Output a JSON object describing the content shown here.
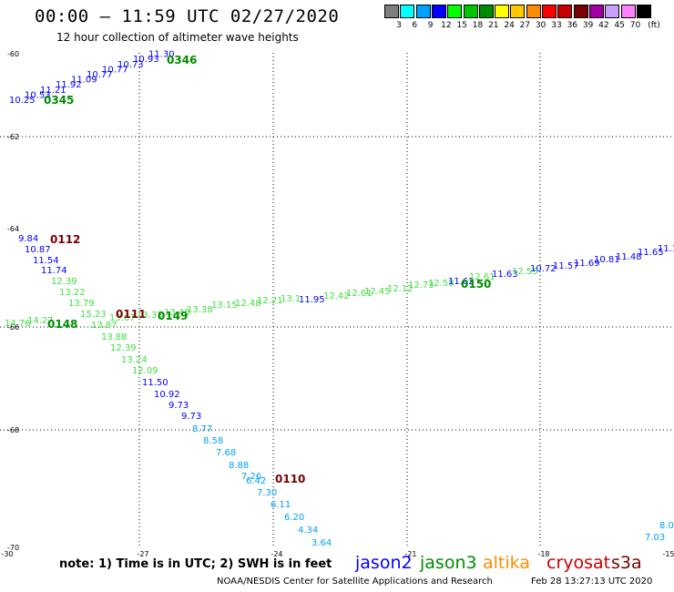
{
  "header": {
    "title": "00:00 – 11:59 UTC 02/27/2020",
    "subtitle": "12 hour collection of altimeter wave heights"
  },
  "legend": {
    "unit": "(ft)",
    "bins": [
      {
        "label": "3",
        "color": "#7f7f7f"
      },
      {
        "label": "6",
        "color": "#00ffff"
      },
      {
        "label": "9",
        "color": "#00a0ff"
      },
      {
        "label": "12",
        "color": "#0000ff"
      },
      {
        "label": "15",
        "color": "#00ff00"
      },
      {
        "label": "18",
        "color": "#00c800"
      },
      {
        "label": "21",
        "color": "#008c00"
      },
      {
        "label": "24",
        "color": "#ffff00"
      },
      {
        "label": "27",
        "color": "#ffc800"
      },
      {
        "label": "30",
        "color": "#ff8c00"
      },
      {
        "label": "33",
        "color": "#ff0000"
      },
      {
        "label": "36",
        "color": "#c80000"
      },
      {
        "label": "39",
        "color": "#780000"
      },
      {
        "label": "42",
        "color": "#a000a0"
      },
      {
        "label": "45",
        "color": "#c8a0ff"
      },
      {
        "label": "70",
        "color": "#ff80ff"
      },
      {
        "label": "",
        "color": "#000000"
      }
    ]
  },
  "axes": {
    "lat_labels": [
      "-60",
      "-62",
      "-64",
      "-66",
      "-68",
      "-70"
    ],
    "lon_labels": [
      "-30",
      "-27",
      "-24",
      "-21",
      "-18",
      "-15"
    ]
  },
  "tracks": [
    {
      "id": "track-0345",
      "time": "0345",
      "time_color": "#008c00",
      "values": [
        "10.25",
        "10.53",
        "11.21",
        "11.92",
        "11.09",
        "10.77",
        "10.77",
        "10.73",
        "10.93",
        "11.30"
      ],
      "colors": [
        "#0000ff",
        "#0000ff",
        "#0000ff",
        "#0000ff",
        "#0000ff",
        "#0000ff",
        "#0000ff",
        "#0000ff",
        "#0000ff",
        "#0000ff"
      ],
      "time2": "0346"
    },
    {
      "id": "track-0112",
      "time": "0112",
      "time_color": "#780000",
      "values": [
        "9.84",
        "10.87",
        "11.54",
        "11.74",
        "12.39",
        "13.22",
        "13.79",
        "15.23",
        "13.87",
        "13.88",
        "12.39",
        "13.24",
        "12.09",
        "11.50",
        "10.92",
        "9.73",
        "9.73",
        "8.77",
        "8.58",
        "7.68",
        "8.88",
        "7.26",
        "6.42",
        "7.30",
        "6.11",
        "6.20",
        "4.34",
        "3.64"
      ],
      "colors": [
        "#0000ff",
        "#0000ff",
        "#0000ff",
        "#0000ff",
        "#40e040",
        "#40e040",
        "#40e040",
        "#40e040",
        "#40e040",
        "#40e040",
        "#40e040",
        "#40e040",
        "#40e040",
        "#0000ff",
        "#0000ff",
        "#0000ff",
        "#0000ff",
        "#00a0ff",
        "#00a0ff",
        "#00a0ff",
        "#00a0ff",
        "#00a0ff",
        "#00a0ff",
        "#00a0ff",
        "#00a0ff",
        "#00a0ff",
        "#00a0ff",
        "#00a0ff"
      ],
      "time2": "0110"
    },
    {
      "id": "track-0148",
      "time": "0148",
      "time_color": "#008c00",
      "values": [
        "14.76",
        "14.27",
        "13.67",
        "13.33",
        "13.48",
        "13.38",
        "13.15",
        "12.48",
        "12.21",
        "13.1",
        "11.95",
        "12.42",
        "12.61",
        "12.45",
        "12.12",
        "12.73",
        "12.58",
        "11.62",
        "12.61",
        "11.63",
        "12.55",
        "10.72",
        "11.57",
        "11.69",
        "10.81",
        "11.48",
        "11.65",
        "11.1"
      ],
      "colors": [
        "#40e040",
        "#40e040",
        "#40e040",
        "#40e040",
        "#40e040",
        "#40e040",
        "#40e040",
        "#40e040",
        "#40e040",
        "#40e040",
        "#0000ff",
        "#40e040",
        "#40e040",
        "#40e040",
        "#40e040",
        "#40e040",
        "#40e040",
        "#0000ff",
        "#40e040",
        "#0000ff",
        "#40e040",
        "#0000ff",
        "#0000ff",
        "#0000ff",
        "#0000ff",
        "#0000ff",
        "#0000ff",
        "#0000ff"
      ],
      "time2": "0111",
      "time3": "0149",
      "time4": "0150"
    },
    {
      "id": "track-edge",
      "values": [
        "8.0",
        "7.03"
      ],
      "colors": [
        "#00a0ff",
        "#00a0ff"
      ]
    }
  ],
  "notes": {
    "text": "note:  1) Time is in UTC;  2) SWH is in feet"
  },
  "satellites": [
    {
      "name": "jason2",
      "color": "#0000ff"
    },
    {
      "name": "jason3",
      "color": "#008c00"
    },
    {
      "name": "altika",
      "color": "#ff8c00"
    },
    {
      "name": "cryosat",
      "color": "#c80000"
    },
    {
      "name": "s3a",
      "color": "#780000"
    }
  ],
  "footer": {
    "agency": "NOAA/NESDIS Center for Satellite Applications and Research",
    "timestamp": "Feb 28 13:27:13 UTC 2020"
  }
}
